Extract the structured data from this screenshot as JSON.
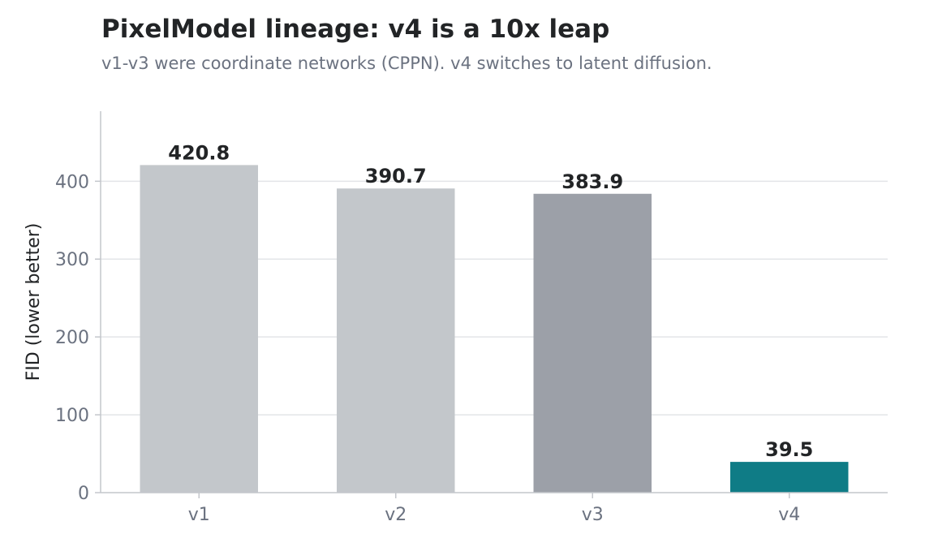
{
  "chart_data": {
    "type": "bar",
    "title": "PixelModel lineage: v4 is a 10x leap",
    "subtitle": "v1-v3 were coordinate networks (CPPN). v4 switches to latent diffusion.",
    "xlabel": "",
    "ylabel": "FID (lower better)",
    "categories": [
      "v1",
      "v2",
      "v3",
      "v4"
    ],
    "values": [
      420.8,
      390.7,
      383.9,
      39.5
    ],
    "value_labels": [
      "420.8",
      "390.7",
      "383.9",
      "39.5"
    ],
    "bar_colors": [
      "#c3c7cb",
      "#c3c7cb",
      "#9ca0a8",
      "#0f7c86"
    ],
    "ylim": [
      0,
      490
    ],
    "yticks": [
      0,
      100,
      200,
      300,
      400
    ],
    "grid": true,
    "legend": "none"
  }
}
